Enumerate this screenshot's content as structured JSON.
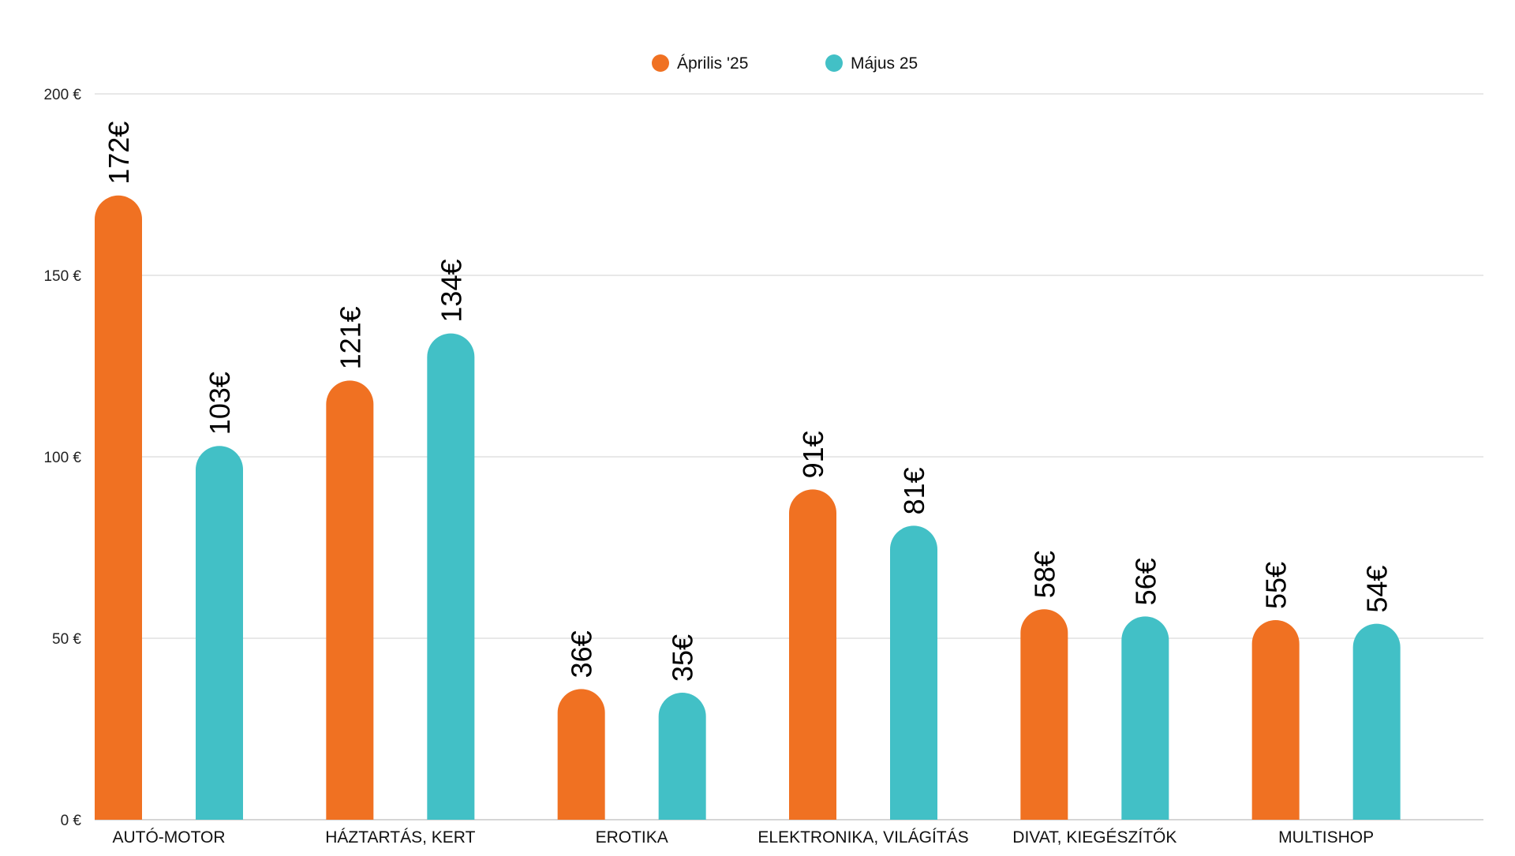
{
  "chart_data": {
    "type": "bar",
    "title": "",
    "xlabel": "",
    "ylabel": "",
    "ylim": [
      0,
      200
    ],
    "yticks": [
      0,
      50,
      100,
      150,
      200
    ],
    "ytick_labels": [
      "0 €",
      "50 €",
      "100 €",
      "150 €",
      "200 €"
    ],
    "grid": true,
    "legend_position": "top-center",
    "categories": [
      "AUTÓ-MOTOR",
      "HÁZTARTÁS, KERT",
      "EROTIKA",
      "ELEKTRONIKA, VILÁGÍTÁS",
      "DIVAT, KIEGÉSZÍTŐK",
      "MULTISHOP"
    ],
    "series": [
      {
        "name": "Április '25",
        "color": "#f07122",
        "values": [
          172,
          121,
          36,
          91,
          58,
          55
        ],
        "data_labels": [
          "172€",
          "121€",
          "36€",
          "91€",
          "58€",
          "55€"
        ]
      },
      {
        "name": "Május 25",
        "color": "#42c0c6",
        "values": [
          103,
          134,
          35,
          81,
          56,
          54
        ],
        "data_labels": [
          "103€",
          "134€",
          "35€",
          "81€",
          "56€",
          "54€"
        ]
      }
    ]
  }
}
